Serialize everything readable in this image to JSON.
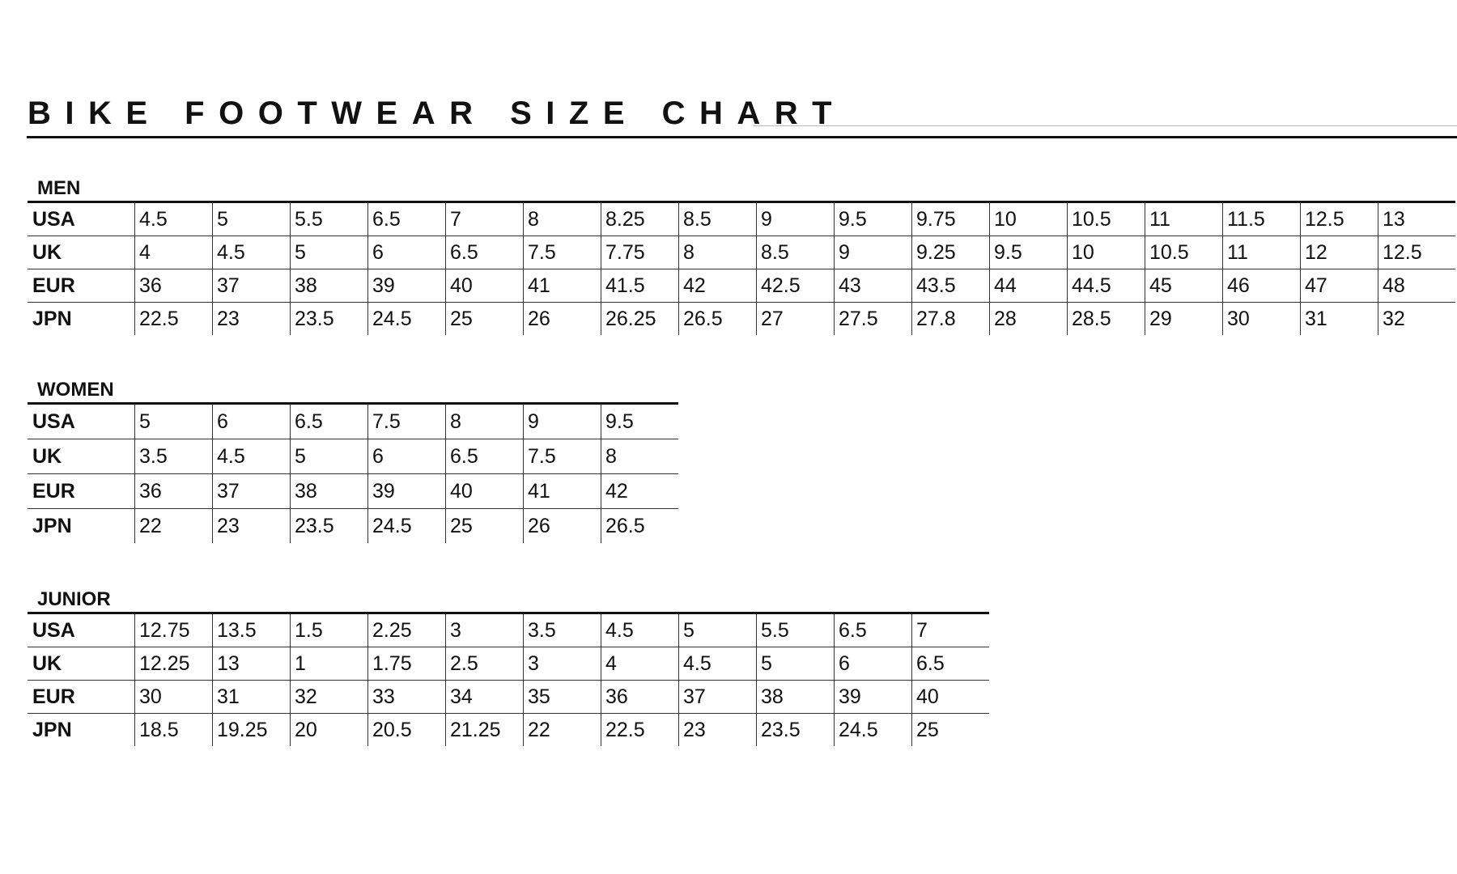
{
  "title": "BIKE FOOTWEAR SIZE CHART",
  "tables": [
    {
      "id": "men",
      "label": "MEN",
      "rows": [
        {
          "label": "USA",
          "values": [
            "4.5",
            "5",
            "5.5",
            "6.5",
            "7",
            "8",
            "8.25",
            "8.5",
            "9",
            "9.5",
            "9.75",
            "10",
            "10.5",
            "11",
            "11.5",
            "12.5",
            "13"
          ]
        },
        {
          "label": "UK",
          "values": [
            "4",
            "4.5",
            "5",
            "6",
            "6.5",
            "7.5",
            "7.75",
            "8",
            "8.5",
            "9",
            "9.25",
            "9.5",
            "10",
            "10.5",
            "11",
            "12",
            "12.5"
          ]
        },
        {
          "label": "EUR",
          "values": [
            "36",
            "37",
            "38",
            "39",
            "40",
            "41",
            "41.5",
            "42",
            "42.5",
            "43",
            "43.5",
            "44",
            "44.5",
            "45",
            "46",
            "47",
            "48"
          ]
        },
        {
          "label": "JPN",
          "values": [
            "22.5",
            "23",
            "23.5",
            "24.5",
            "25",
            "26",
            "26.25",
            "26.5",
            "27",
            "27.5",
            "27.8",
            "28",
            "28.5",
            "29",
            "30",
            "31",
            "32"
          ]
        }
      ]
    },
    {
      "id": "women",
      "label": "WOMEN",
      "rows": [
        {
          "label": "USA",
          "values": [
            "5",
            "6",
            "6.5",
            "7.5",
            "8",
            "9",
            "9.5"
          ]
        },
        {
          "label": "UK",
          "values": [
            "3.5",
            "4.5",
            "5",
            "6",
            "6.5",
            "7.5",
            "8"
          ]
        },
        {
          "label": "EUR",
          "values": [
            "36",
            "37",
            "38",
            "39",
            "40",
            "41",
            "42"
          ]
        },
        {
          "label": "JPN",
          "values": [
            "22",
            "23",
            "23.5",
            "24.5",
            "25",
            "26",
            "26.5"
          ]
        }
      ]
    },
    {
      "id": "junior",
      "label": "JUNIOR",
      "rows": [
        {
          "label": "USA",
          "values": [
            "12.75",
            "13.5",
            "1.5",
            "2.25",
            "3",
            "3.5",
            "4.5",
            "5",
            "5.5",
            "6.5",
            "7"
          ]
        },
        {
          "label": "UK",
          "values": [
            "12.25",
            "13",
            "1",
            "1.75",
            "2.5",
            "3",
            "4",
            "4.5",
            "5",
            "6",
            "6.5"
          ]
        },
        {
          "label": "EUR",
          "values": [
            "30",
            "31",
            "32",
            "33",
            "34",
            "35",
            "36",
            "37",
            "38",
            "39",
            "40"
          ]
        },
        {
          "label": "JPN",
          "values": [
            "18.5",
            "19.25",
            "20",
            "20.5",
            "21.25",
            "22",
            "22.5",
            "23",
            "23.5",
            "24.5",
            "25"
          ]
        }
      ]
    }
  ]
}
